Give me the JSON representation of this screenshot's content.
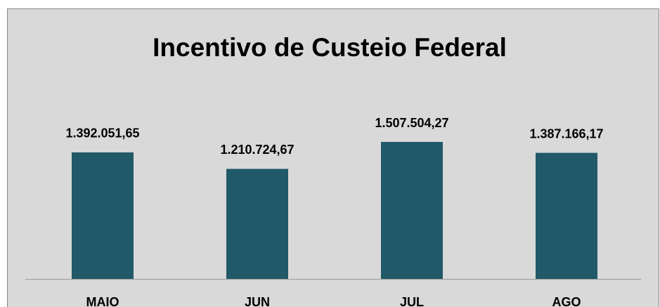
{
  "chart_data": {
    "type": "bar",
    "title": "Incentivo de Custeio Federal",
    "categories": [
      "MAIO",
      "JUN",
      "JUL",
      "AGO"
    ],
    "values": [
      1392051.65,
      1210724.67,
      1507504.27,
      1387166.17
    ],
    "value_labels": [
      "1.392.051,65",
      "1.210.724,67",
      "1.507.504,27",
      "1.387.166,17"
    ],
    "color": "#215968"
  }
}
